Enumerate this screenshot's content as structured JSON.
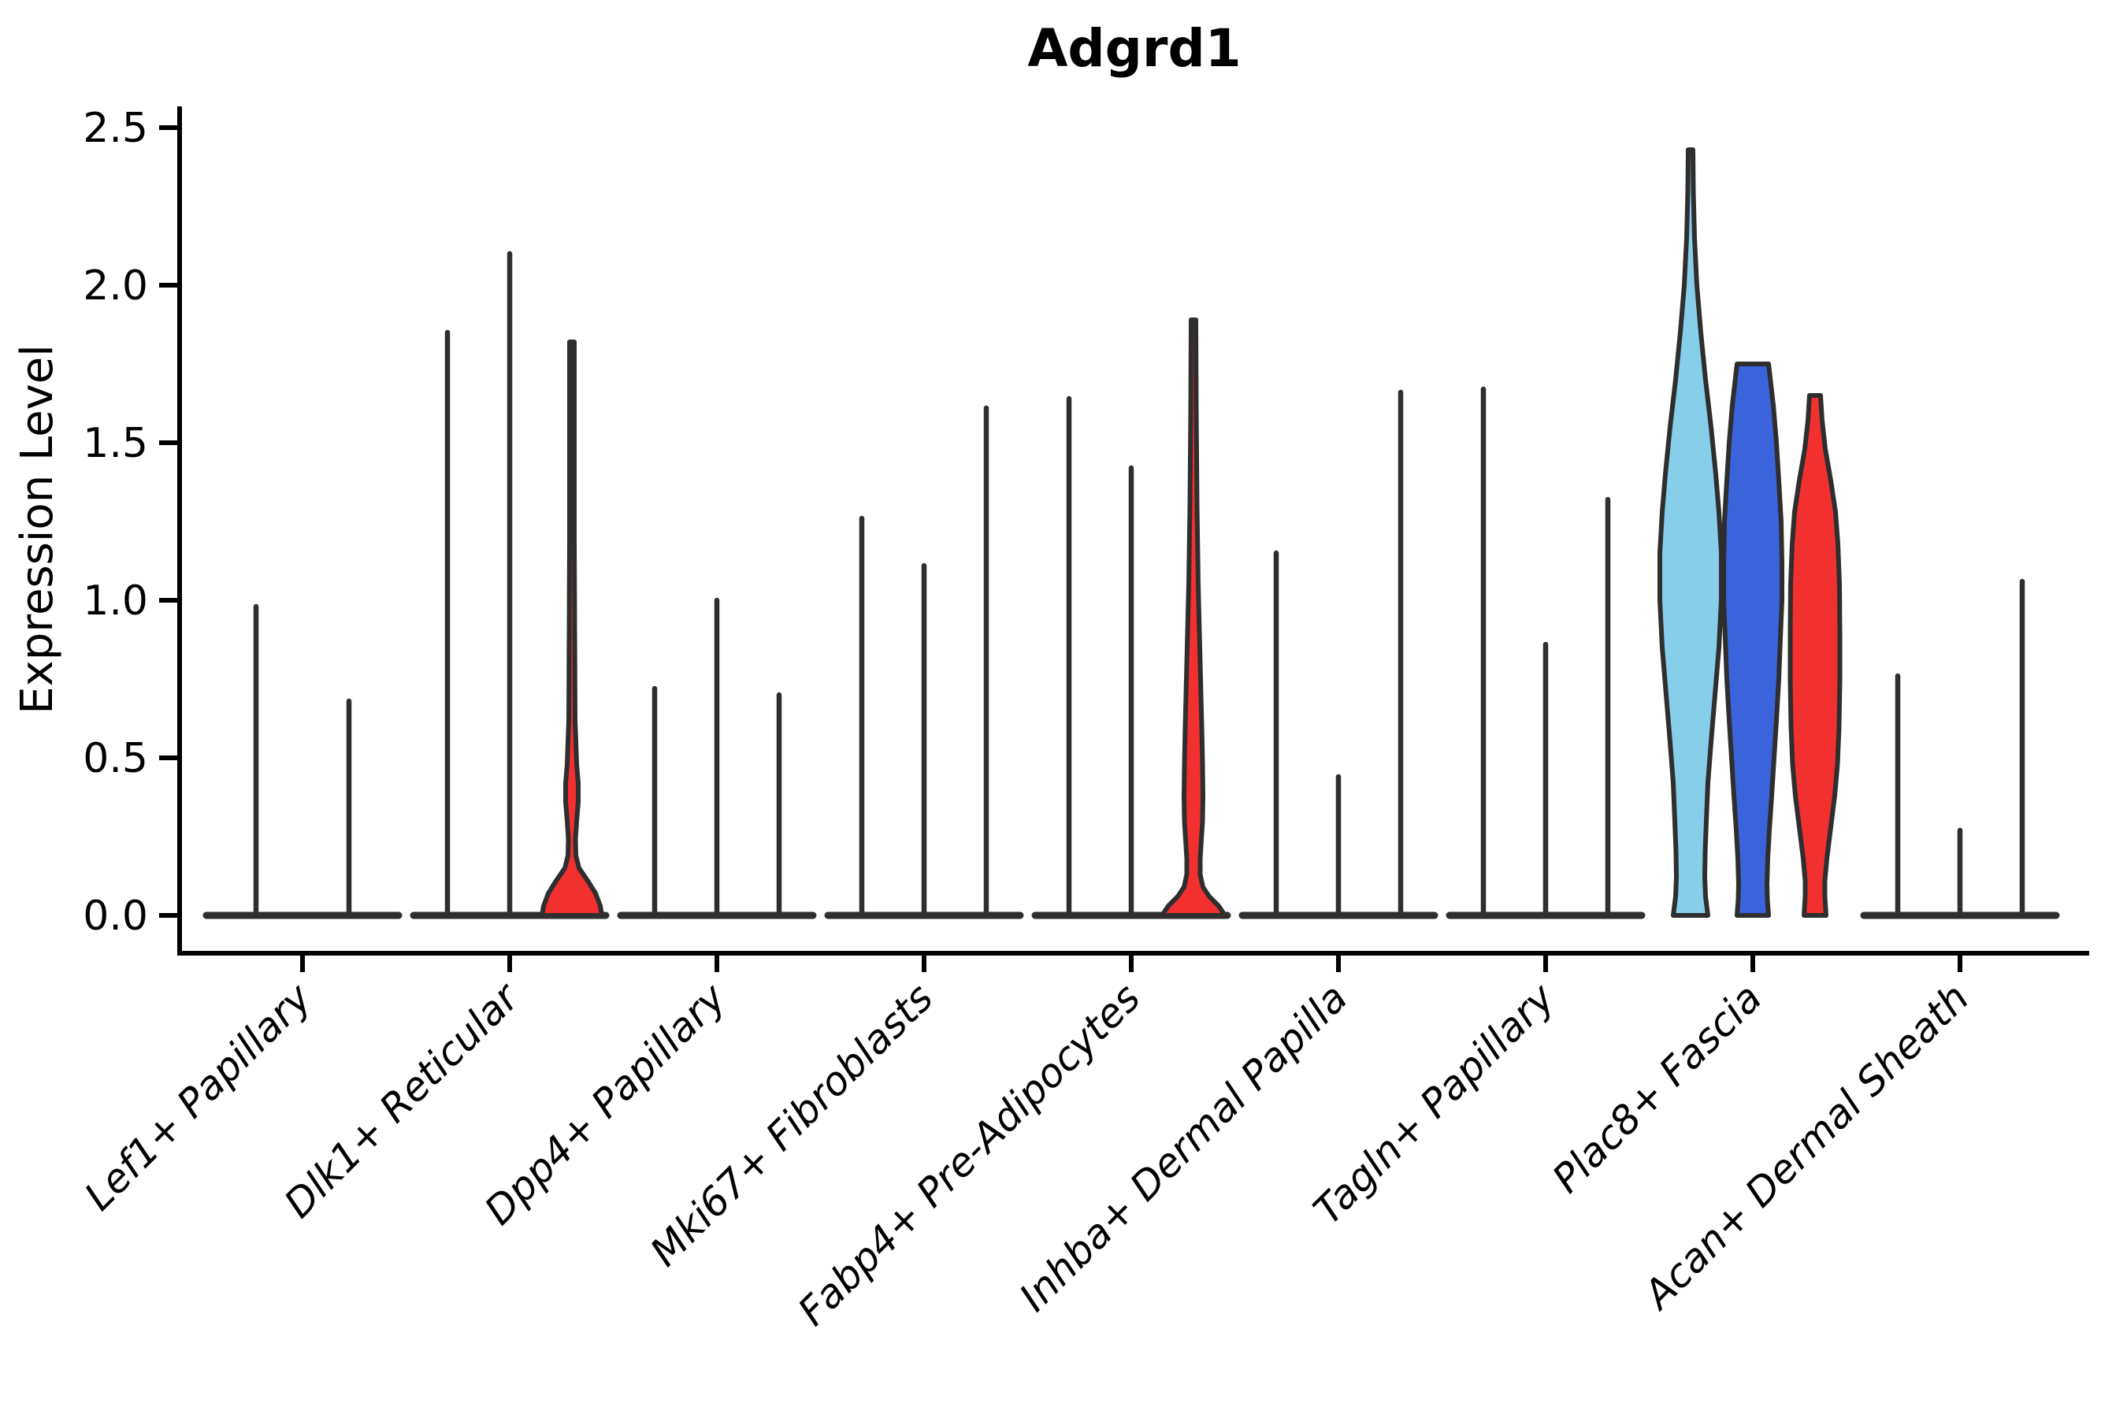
{
  "chart_data": {
    "type": "violin",
    "title": "Adgrd1",
    "ylabel": "Expression Level",
    "xlabel": "",
    "ylim": [
      0,
      2.5
    ],
    "yticks": [
      0.0,
      0.5,
      1.0,
      1.5,
      2.0,
      2.5
    ],
    "ytick_labels": [
      "0.0",
      "0.5",
      "1.0",
      "1.5",
      "2.0",
      "2.5"
    ],
    "grid": false,
    "legend": "none",
    "x_labels_rotation_deg": 45,
    "x_labels_italic": true,
    "colors": {
      "outline": "#2e2e2e",
      "axis": "#000000",
      "group1_fill": "#87CEEB",
      "group2_fill": "#3B63DC",
      "group3_fill": "#F33030"
    },
    "categories": [
      "Lef1+ Papillary",
      "Dlk1+ Reticular",
      "Dpp4+ Papillary",
      "Mki67+ Fibroblasts",
      "Fabp4+ Pre-Adipocytes",
      "Inhba+ Dermal Papilla",
      "Tagln+ Papillary",
      "Plac8+ Fascia",
      "Acan+ Dermal Sheath"
    ],
    "groups": [
      {
        "label": "Lef1+ Papillary",
        "baseline": true,
        "violins": [
          {
            "offset": -59,
            "max": 0.98,
            "kind": "spike"
          },
          {
            "offset": 59,
            "max": 0.68,
            "kind": "spike"
          }
        ]
      },
      {
        "label": "Dlk1+ Reticular",
        "baseline": true,
        "violins": [
          {
            "offset": -79,
            "max": 1.85,
            "kind": "spike"
          },
          {
            "offset": 0,
            "max": 2.1,
            "kind": "spike"
          },
          {
            "offset": 79,
            "max": 1.82,
            "kind": "shaped",
            "fill": "#F33030",
            "profile": [
              [
                1.82,
                3
              ],
              [
                1.55,
                3
              ],
              [
                1.2,
                3
              ],
              [
                0.9,
                3.5
              ],
              [
                0.62,
                4
              ],
              [
                0.48,
                6
              ],
              [
                0.42,
                8
              ],
              [
                0.36,
                8
              ],
              [
                0.3,
                6
              ],
              [
                0.24,
                4.5
              ],
              [
                0.19,
                5
              ],
              [
                0.15,
                9
              ],
              [
                0.11,
                20
              ],
              [
                0.07,
                30
              ],
              [
                0.03,
                36
              ],
              [
                0,
                38
              ]
            ]
          }
        ]
      },
      {
        "label": "Dpp4+ Papillary",
        "baseline": true,
        "violins": [
          {
            "offset": -79,
            "max": 0.72,
            "kind": "spike"
          },
          {
            "offset": 0,
            "max": 1.0,
            "kind": "spike"
          },
          {
            "offset": 79,
            "max": 0.7,
            "kind": "spike"
          }
        ]
      },
      {
        "label": "Mki67+ Fibroblasts",
        "baseline": true,
        "violins": [
          {
            "offset": -79,
            "max": 1.26,
            "kind": "spike"
          },
          {
            "offset": 0,
            "max": 1.11,
            "kind": "spike"
          },
          {
            "offset": 79,
            "max": 1.61,
            "kind": "spike"
          }
        ]
      },
      {
        "label": "Fabp4+ Pre-Adipocytes",
        "baseline": true,
        "violins": [
          {
            "offset": -79,
            "max": 1.64,
            "kind": "spike"
          },
          {
            "offset": 0,
            "max": 1.42,
            "kind": "spike"
          },
          {
            "offset": 79,
            "max": 1.89,
            "kind": "shaped",
            "fill": "#F33030",
            "profile": [
              [
                1.89,
                3
              ],
              [
                1.6,
                3.5
              ],
              [
                1.3,
                4.5
              ],
              [
                1.05,
                6
              ],
              [
                0.9,
                7.5
              ],
              [
                0.75,
                9
              ],
              [
                0.6,
                10.5
              ],
              [
                0.48,
                11.5
              ],
              [
                0.38,
                12
              ],
              [
                0.3,
                11.5
              ],
              [
                0.24,
                10
              ],
              [
                0.18,
                8.5
              ],
              [
                0.13,
                8.5
              ],
              [
                0.09,
                12
              ],
              [
                0.06,
                20
              ],
              [
                0.03,
                32
              ],
              [
                0,
                40
              ]
            ]
          }
        ]
      },
      {
        "label": "Inhba+ Dermal Papilla",
        "baseline": true,
        "violins": [
          {
            "offset": -79,
            "max": 1.15,
            "kind": "spike"
          },
          {
            "offset": 0,
            "max": 0.44,
            "kind": "spike"
          },
          {
            "offset": 79,
            "max": 1.66,
            "kind": "spike"
          }
        ]
      },
      {
        "label": "Tagln+ Papillary",
        "baseline": true,
        "violins": [
          {
            "offset": -79,
            "max": 1.67,
            "kind": "spike"
          },
          {
            "offset": 0,
            "max": 0.86,
            "kind": "spike"
          },
          {
            "offset": 79,
            "max": 1.32,
            "kind": "spike"
          }
        ]
      },
      {
        "label": "Plac8+ Fascia",
        "baseline": false,
        "violins": [
          {
            "offset": -79,
            "max": 2.43,
            "kind": "shaped",
            "fill": "#87CEEB",
            "profile": [
              [
                2.43,
                3
              ],
              [
                2.3,
                3.5
              ],
              [
                2.15,
                5
              ],
              [
                2.0,
                8
              ],
              [
                1.85,
                13
              ],
              [
                1.7,
                19
              ],
              [
                1.55,
                26
              ],
              [
                1.4,
                32
              ],
              [
                1.28,
                36
              ],
              [
                1.15,
                39
              ],
              [
                1.0,
                39
              ],
              [
                0.85,
                36
              ],
              [
                0.7,
                31
              ],
              [
                0.55,
                26
              ],
              [
                0.42,
                22
              ],
              [
                0.3,
                20
              ],
              [
                0.2,
                18.5
              ],
              [
                0.12,
                18
              ],
              [
                0.06,
                19
              ],
              [
                0,
                22
              ]
            ]
          },
          {
            "offset": 0,
            "max": 1.75,
            "kind": "shaped",
            "fill": "#3B63DC",
            "profile": [
              [
                1.75,
                20
              ],
              [
                1.62,
                26
              ],
              [
                1.5,
                30
              ],
              [
                1.38,
                33
              ],
              [
                1.25,
                36
              ],
              [
                1.12,
                37
              ],
              [
                1.0,
                37
              ],
              [
                0.88,
                35
              ],
              [
                0.75,
                33
              ],
              [
                0.62,
                30
              ],
              [
                0.5,
                27
              ],
              [
                0.38,
                24
              ],
              [
                0.27,
                21
              ],
              [
                0.18,
                19
              ],
              [
                0.1,
                18
              ],
              [
                0.05,
                18.5
              ],
              [
                0,
                20
              ]
            ]
          },
          {
            "offset": 79,
            "max": 1.65,
            "kind": "shaped",
            "fill": "#F33030",
            "profile": [
              [
                1.65,
                7
              ],
              [
                1.57,
                9
              ],
              [
                1.48,
                13
              ],
              [
                1.38,
                20
              ],
              [
                1.28,
                26
              ],
              [
                1.18,
                29
              ],
              [
                1.05,
                31
              ],
              [
                0.9,
                31.5
              ],
              [
                0.75,
                31.5
              ],
              [
                0.6,
                30.5
              ],
              [
                0.48,
                28.5
              ],
              [
                0.38,
                25
              ],
              [
                0.28,
                20
              ],
              [
                0.18,
                15
              ],
              [
                0.11,
                12.5
              ],
              [
                0.06,
                12.5
              ],
              [
                0.02,
                13.5
              ],
              [
                0,
                14
              ]
            ]
          }
        ]
      },
      {
        "label": "Acan+ Dermal Sheath",
        "baseline": true,
        "violins": [
          {
            "offset": -79,
            "max": 0.76,
            "kind": "spike"
          },
          {
            "offset": 0,
            "max": 0.27,
            "kind": "spike"
          },
          {
            "offset": 79,
            "max": 1.06,
            "kind": "spike"
          }
        ]
      }
    ]
  }
}
